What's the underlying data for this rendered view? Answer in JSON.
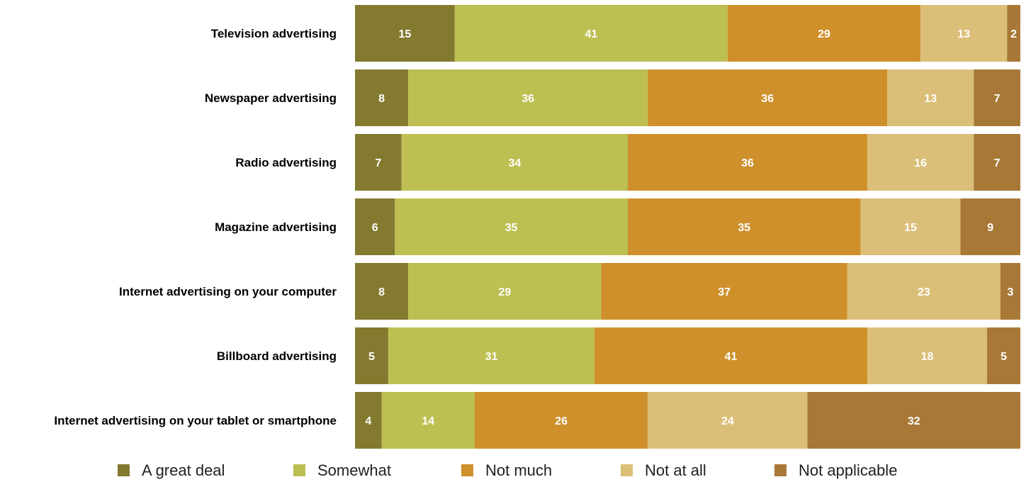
{
  "chart_data": {
    "type": "bar",
    "orientation": "horizontal",
    "stacked": true,
    "categories": [
      "Television advertising",
      "Newspaper advertising",
      "Radio advertising",
      "Magazine advertising",
      "Internet advertising on your computer",
      "Billboard advertising",
      "Internet advertising on your tablet or smartphone"
    ],
    "series": [
      {
        "name": "A great deal",
        "color": "#837a30",
        "values": [
          15,
          8,
          7,
          6,
          8,
          5,
          4
        ]
      },
      {
        "name": "Somewhat",
        "color": "#bdbf52",
        "values": [
          41,
          36,
          34,
          35,
          29,
          31,
          14
        ]
      },
      {
        "name": "Not much",
        "color": "#cf902b",
        "values": [
          29,
          36,
          36,
          35,
          37,
          41,
          26
        ]
      },
      {
        "name": "Not at all",
        "color": "#dbbf78",
        "values": [
          13,
          13,
          16,
          15,
          23,
          18,
          24
        ]
      },
      {
        "name": "Not applicable",
        "color": "#a87936",
        "values": [
          2,
          7,
          7,
          9,
          3,
          5,
          32
        ]
      }
    ],
    "title": "",
    "xlabel": "",
    "ylabel": "",
    "grid": false,
    "legend_position": "bottom"
  }
}
